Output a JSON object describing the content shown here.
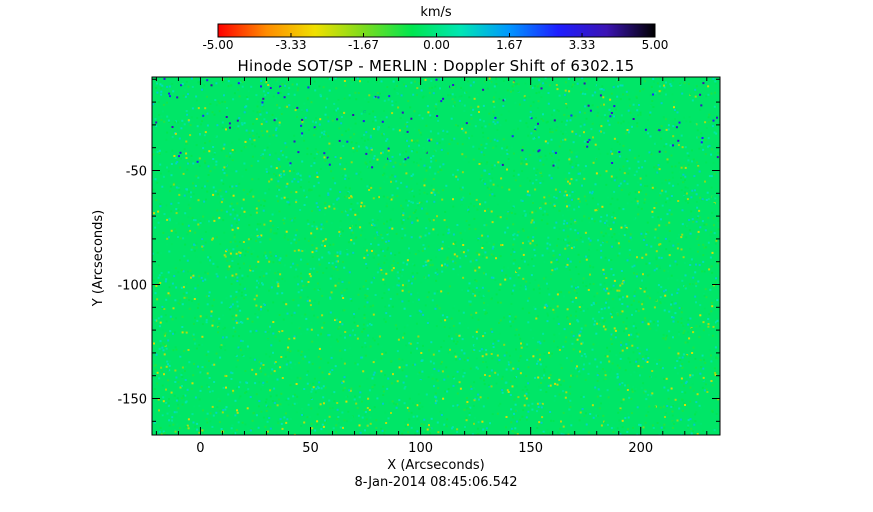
{
  "chart_data": {
    "type": "heatmap",
    "title": "Hinode SOT/SP - MERLIN : Doppler Shift of 6302.15",
    "xlabel": "X (Arcseconds)",
    "ylabel": "Y (Arcseconds)",
    "footer": "8-Jan-2014 08:45:06.542",
    "xlim": [
      -22,
      236
    ],
    "ylim": [
      -166,
      -9
    ],
    "xticks": [
      0,
      50,
      100,
      150,
      200
    ],
    "xtick_labels": [
      "0",
      "50",
      "100",
      "150",
      "200"
    ],
    "yticks": [
      -50,
      -100,
      -150
    ],
    "ytick_labels": [
      "-50",
      "-100",
      "-150"
    ],
    "colorbar": {
      "unit": "km/s",
      "range": [
        -5.0,
        5.0
      ],
      "ticks": [
        -5.0,
        -3.33,
        -1.67,
        0.0,
        1.67,
        3.33,
        5.0
      ],
      "tick_labels": [
        "-5.00",
        "-3.33",
        "-1.67",
        "0.00",
        "1.67",
        "3.33",
        "5.00"
      ],
      "colormap_stops": [
        "#ff0000",
        "#ff8c00",
        "#f0e000",
        "#7cdc1e",
        "#00e650",
        "#00e6b4",
        "#0096ff",
        "#1e1eff",
        "#3c14b4",
        "#000000"
      ]
    },
    "background_value_kms": -0.3,
    "grid": false
  }
}
